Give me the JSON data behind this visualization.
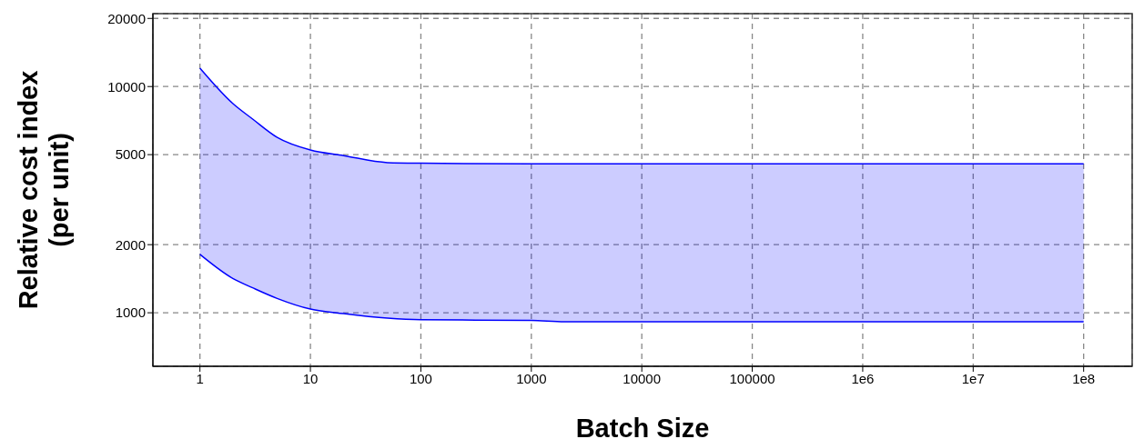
{
  "chart_data": {
    "type": "line",
    "xlabel": "Batch Size",
    "ylabel": "Relative cost index\n(per unit)",
    "log": "xy",
    "grid": true,
    "xlim": [
      0.375,
      275000000
    ],
    "ylim": [
      580,
      21000
    ],
    "xticks": [
      1,
      10,
      100,
      1000,
      10000,
      100000,
      {
        "value": 1000000,
        "label": "1e6"
      },
      {
        "value": 10000000,
        "label": "1e7"
      },
      {
        "value": 100000000,
        "label": "1e8"
      }
    ],
    "yticks": [
      1000,
      2000,
      5000,
      10000,
      20000
    ],
    "x": [
      1,
      2,
      3,
      5,
      10,
      20,
      50,
      100,
      1000,
      2000,
      100000000
    ],
    "series": [
      {
        "color": "#0000ff",
        "values": [
          12050,
          8380,
          7180,
          5960,
          5240,
          4950,
          4610,
          4580,
          4550,
          4550,
          4550
        ],
        "lower": [
          1811,
          1414,
          1289,
          1157,
          1038,
          991,
          946,
          931,
          925,
          912,
          912
        ],
        "upper": [
          12050,
          8380,
          7180,
          5960,
          5240,
          4950,
          4610,
          4580,
          4550,
          4550,
          4550
        ]
      },
      {
        "color": "#0000ff",
        "values": [
          1811,
          1414,
          1289,
          1157,
          1038,
          991,
          946,
          931,
          925,
          912,
          912
        ]
      }
    ]
  }
}
